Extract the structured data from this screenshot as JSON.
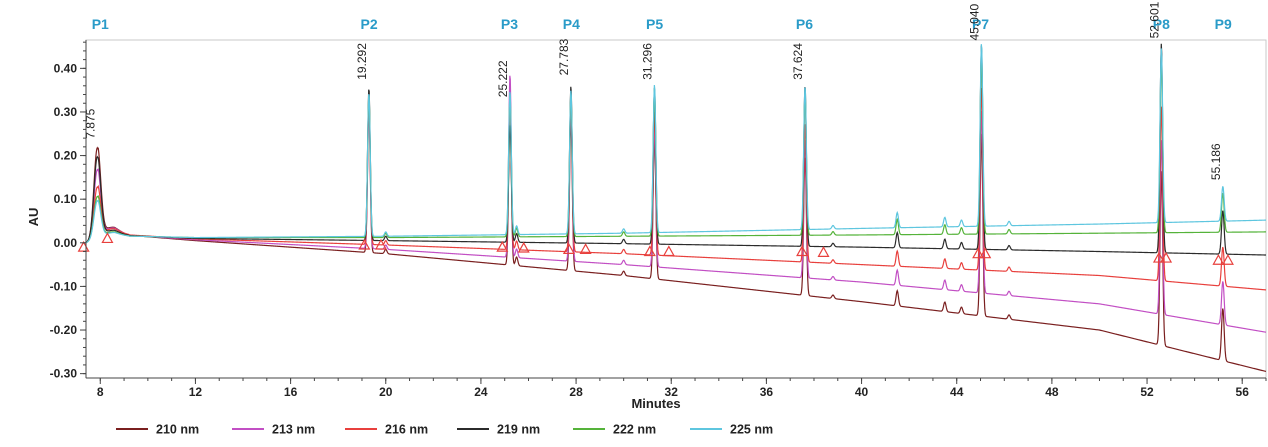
{
  "chart_data": {
    "type": "line",
    "xlabel": "Minutes",
    "ylabel": "AU",
    "xlim": [
      7.4,
      57.0
    ],
    "ylim": [
      -0.31,
      0.465
    ],
    "grid": false,
    "legend_position": "bottom-left",
    "x_ticks": [
      8,
      12,
      16,
      20,
      24,
      28,
      32,
      36,
      40,
      44,
      48,
      52,
      56
    ],
    "x_tick_labels": [
      "8",
      "12",
      "16",
      "20",
      "24",
      "28",
      "32",
      "36",
      "40",
      "44",
      "48",
      "52",
      "56"
    ],
    "y_ticks": [
      -0.3,
      -0.2,
      -0.1,
      0.0,
      0.1,
      0.2,
      0.3,
      0.4
    ],
    "y_tick_labels": [
      "-0.30",
      "-0.20",
      "-0.10",
      "0.00",
      "0.10",
      "0.20",
      "0.30",
      "0.40"
    ],
    "peak_labels": [
      {
        "label": "P1",
        "x": 8.0
      },
      {
        "label": "P2",
        "x": 19.3
      },
      {
        "label": "P3",
        "x": 25.2
      },
      {
        "label": "P4",
        "x": 27.8
      },
      {
        "label": "P5",
        "x": 31.3
      },
      {
        "label": "P6",
        "x": 37.6
      },
      {
        "label": "P7",
        "x": 45.0
      },
      {
        "label": "P8",
        "x": 52.6
      },
      {
        "label": "P9",
        "x": 55.2
      }
    ],
    "peak_label_color": "#2a9bc8",
    "retention_times": [
      {
        "text": "7.875",
        "x": 7.875,
        "y": 0.225
      },
      {
        "text": "19.292",
        "x": 19.292,
        "y": 0.36
      },
      {
        "text": "25.222",
        "x": 25.222,
        "y": 0.32
      },
      {
        "text": "27.783",
        "x": 27.783,
        "y": 0.37
      },
      {
        "text": "31.296",
        "x": 31.296,
        "y": 0.36
      },
      {
        "text": "37.624",
        "x": 37.624,
        "y": 0.36
      },
      {
        "text": "45.040",
        "x": 45.04,
        "y": 0.45
      },
      {
        "text": "52.601",
        "x": 52.601,
        "y": 0.455
      },
      {
        "text": "55.186",
        "x": 55.186,
        "y": 0.13
      }
    ],
    "peaks": [
      {
        "rt": 7.875,
        "heights": [
          0.21,
          0.16,
          0.12,
          0.19,
          0.1,
          0.09
        ]
      },
      {
        "rt": 19.292,
        "heights": [
          0.33,
          0.33,
          0.33,
          0.35,
          0.33,
          0.33
        ]
      },
      {
        "rt": 25.222,
        "heights": [
          0.36,
          0.42,
          0.34,
          0.27,
          0.33,
          0.33
        ]
      },
      {
        "rt": 27.783,
        "heights": [
          0.35,
          0.38,
          0.36,
          0.36,
          0.33,
          0.33
        ]
      },
      {
        "rt": 31.296,
        "heights": [
          0.33,
          0.33,
          0.33,
          0.36,
          0.34,
          0.34
        ]
      },
      {
        "rt": 37.624,
        "heights": [
          0.32,
          0.32,
          0.32,
          0.37,
          0.33,
          0.33
        ]
      },
      {
        "rt": 45.04,
        "heights": [
          0.42,
          0.42,
          0.42,
          0.47,
          0.42,
          0.42
        ]
      },
      {
        "rt": 52.601,
        "heights": [
          0.4,
          0.4,
          0.4,
          0.48,
          0.4,
          0.4
        ]
      },
      {
        "rt": 55.186,
        "heights": [
          0.12,
          0.1,
          0.09,
          0.1,
          0.09,
          0.08
        ]
      }
    ],
    "series": [
      {
        "name": "210 nm",
        "color": "#7a1f1f",
        "baseline": [
          [
            7.4,
            0.0
          ],
          [
            8.6,
            0.02
          ],
          [
            12,
            0.005
          ],
          [
            20,
            -0.025
          ],
          [
            30,
            -0.075
          ],
          [
            40,
            -0.135
          ],
          [
            50,
            -0.2
          ],
          [
            57,
            -0.295
          ]
        ]
      },
      {
        "name": "213 nm",
        "color": "#c24fc4",
        "baseline": [
          [
            7.4,
            0.0
          ],
          [
            8.6,
            0.02
          ],
          [
            12,
            0.007
          ],
          [
            20,
            -0.015
          ],
          [
            30,
            -0.05
          ],
          [
            40,
            -0.09
          ],
          [
            50,
            -0.14
          ],
          [
            57,
            -0.205
          ]
        ]
      },
      {
        "name": "216 nm",
        "color": "#e8403d",
        "baseline": [
          [
            7.4,
            0.0
          ],
          [
            8.6,
            0.02
          ],
          [
            12,
            0.009
          ],
          [
            20,
            -0.005
          ],
          [
            30,
            -0.025
          ],
          [
            40,
            -0.05
          ],
          [
            50,
            -0.075
          ],
          [
            57,
            -0.108
          ]
        ]
      },
      {
        "name": "219 nm",
        "color": "#2b2b2b",
        "baseline": [
          [
            7.4,
            0.0
          ],
          [
            8.6,
            0.018
          ],
          [
            12,
            0.01
          ],
          [
            20,
            0.005
          ],
          [
            30,
            -0.002
          ],
          [
            40,
            -0.01
          ],
          [
            50,
            -0.02
          ],
          [
            57,
            -0.028
          ]
        ]
      },
      {
        "name": "222 nm",
        "color": "#55b33a",
        "baseline": [
          [
            7.4,
            0.0
          ],
          [
            8.6,
            0.016
          ],
          [
            12,
            0.012
          ],
          [
            20,
            0.012
          ],
          [
            30,
            0.015
          ],
          [
            40,
            0.018
          ],
          [
            50,
            0.022
          ],
          [
            57,
            0.025
          ]
        ]
      },
      {
        "name": "225 nm",
        "color": "#5ec6df",
        "baseline": [
          [
            7.4,
            0.0
          ],
          [
            8.6,
            0.016
          ],
          [
            12,
            0.012
          ],
          [
            20,
            0.015
          ],
          [
            30,
            0.022
          ],
          [
            40,
            0.033
          ],
          [
            50,
            0.043
          ],
          [
            57,
            0.052
          ]
        ]
      }
    ],
    "minor_peaks": [
      {
        "rt": 20.0,
        "height": 0.01
      },
      {
        "rt": 25.5,
        "height": 0.02
      },
      {
        "rt": 30.0,
        "height": 0.01
      },
      {
        "rt": 38.8,
        "height": 0.008
      },
      {
        "rt": 41.5,
        "height": 0.035
      },
      {
        "rt": 43.5,
        "height": 0.022
      },
      {
        "rt": 44.2,
        "height": 0.015
      },
      {
        "rt": 46.2,
        "height": 0.01
      }
    ],
    "integration_markers": [
      {
        "x": 7.3,
        "y": -0.01
      },
      {
        "x": 8.3,
        "y": 0.01
      },
      {
        "x": 19.1,
        "y": -0.005
      },
      {
        "x": 19.8,
        "y": -0.005
      },
      {
        "x": 24.9,
        "y": -0.01
      },
      {
        "x": 25.8,
        "y": -0.012
      },
      {
        "x": 27.7,
        "y": -0.015
      },
      {
        "x": 28.4,
        "y": -0.015
      },
      {
        "x": 31.1,
        "y": -0.02
      },
      {
        "x": 31.9,
        "y": -0.02
      },
      {
        "x": 37.5,
        "y": -0.02
      },
      {
        "x": 38.4,
        "y": -0.022
      },
      {
        "x": 44.9,
        "y": -0.025
      },
      {
        "x": 45.2,
        "y": -0.025
      },
      {
        "x": 52.5,
        "y": -0.035
      },
      {
        "x": 52.8,
        "y": -0.035
      },
      {
        "x": 55.0,
        "y": -0.04
      },
      {
        "x": 55.4,
        "y": -0.04
      }
    ]
  }
}
